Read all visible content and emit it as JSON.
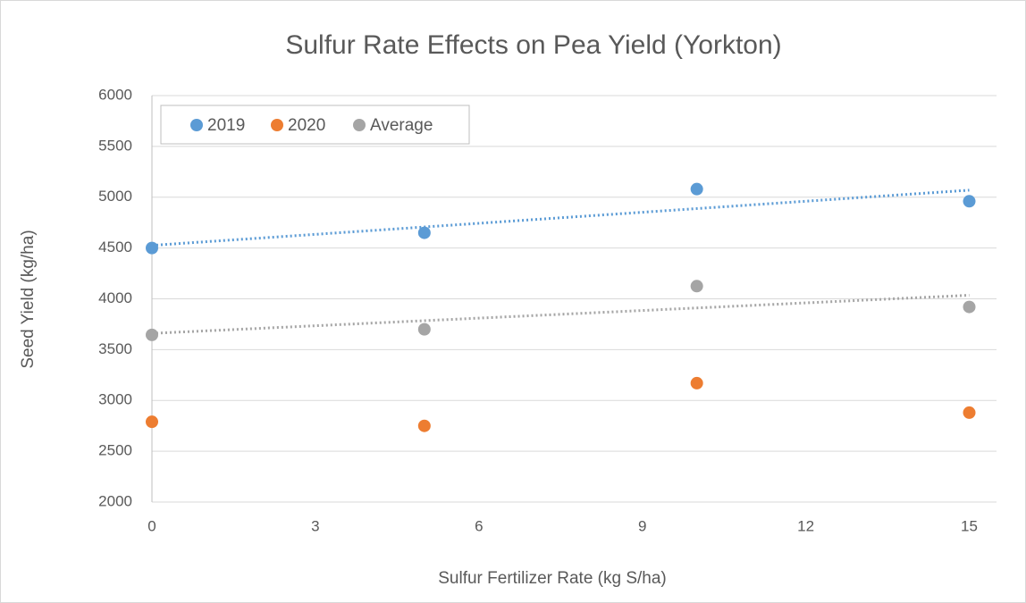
{
  "chart_data": {
    "type": "scatter",
    "title": "Sulfur Rate Effects on Pea Yield (Yorkton)",
    "x_label": "Sulfur Fertilizer Rate (kg S/ha)",
    "y_label": "Seed Yield (kg/ha)",
    "x": [
      0,
      5,
      10,
      15
    ],
    "series": [
      {
        "name": "2019",
        "color": "#5b9bd5",
        "values": [
          4500,
          4650,
          5080,
          4960
        ],
        "trendline": true
      },
      {
        "name": "2020",
        "color": "#ed7d31",
        "values": [
          2790,
          2750,
          3170,
          2880
        ],
        "trendline": false
      },
      {
        "name": "Average",
        "color": "#a5a5a5",
        "values": [
          3645,
          3700,
          4125,
          3920
        ],
        "trendline": true
      }
    ],
    "xlim": [
      0,
      15.5
    ],
    "xticks": [
      0,
      3,
      6,
      9,
      12,
      15
    ],
    "ylim": [
      2000,
      6000
    ],
    "yticks": [
      2000,
      2500,
      3000,
      3500,
      4000,
      4500,
      5000,
      5500,
      6000
    ],
    "grid": true,
    "legend": "top-left"
  }
}
